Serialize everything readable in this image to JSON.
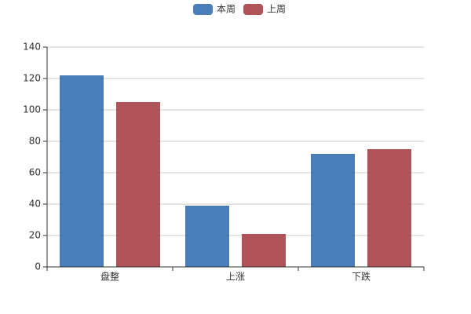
{
  "chart_data": {
    "type": "bar",
    "categories": [
      "盘整",
      "上涨",
      "下跌"
    ],
    "series": [
      {
        "name": "本周",
        "color": "#4a7ebb",
        "values": [
          122,
          39,
          72
        ]
      },
      {
        "name": "上周",
        "color": "#b0545a",
        "values": [
          105,
          21,
          75
        ]
      }
    ],
    "ylim": [
      0,
      140
    ],
    "yticks": [
      0,
      20,
      40,
      60,
      80,
      100,
      120,
      140
    ],
    "grid": true,
    "legend": "top"
  }
}
